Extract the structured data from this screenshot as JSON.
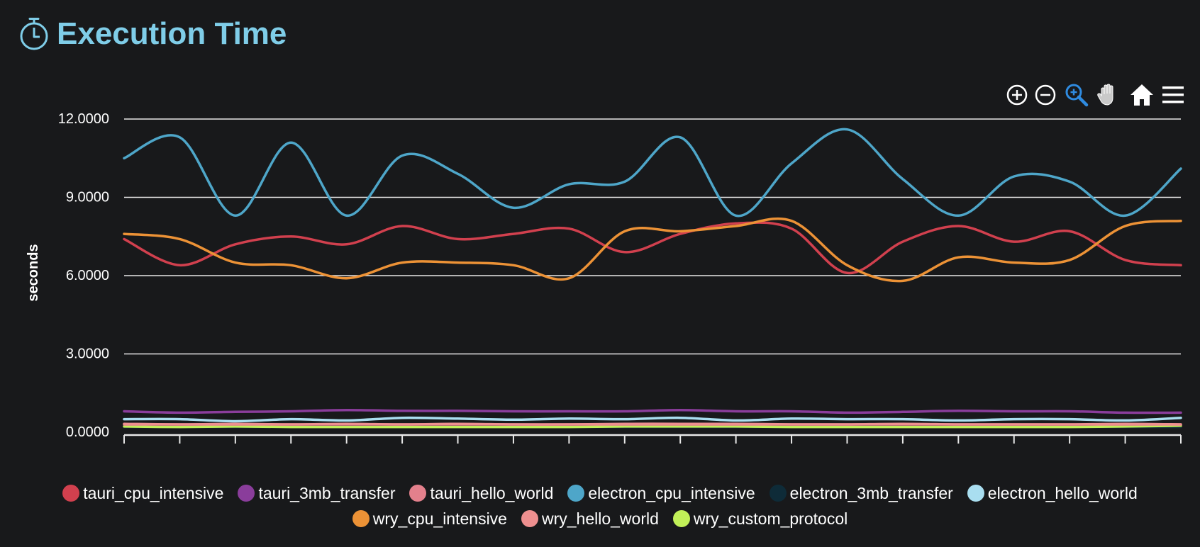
{
  "header": {
    "title": "Execution Time",
    "icon": "stopwatch-icon"
  },
  "toolbar": {
    "buttons": [
      {
        "name": "zoom-in-icon",
        "active": false
      },
      {
        "name": "zoom-out-icon",
        "active": false
      },
      {
        "name": "selection-zoom-icon",
        "active": true
      },
      {
        "name": "pan-hand-icon",
        "active": false
      },
      {
        "name": "reset-home-icon",
        "active": false
      },
      {
        "name": "menu-icon",
        "active": false
      }
    ],
    "active_color": "#2f8be0",
    "icon_color": "#ffffff"
  },
  "chart_data": {
    "type": "line",
    "title": "",
    "xlabel": "",
    "ylabel": "seconds",
    "ylim": [
      0,
      12
    ],
    "yticks": [
      "0.0000",
      "3.0000",
      "6.0000",
      "9.0000",
      "12.0000"
    ],
    "ytick_values": [
      0,
      3,
      6,
      9,
      12
    ],
    "x_count": 20,
    "x_tick_labels_visible": false,
    "grid": true,
    "legend_position": "bottom",
    "legend_rows": [
      [
        "tauri_cpu_intensive",
        "tauri_3mb_transfer",
        "tauri_hello_world",
        "electron_cpu_intensive",
        "electron_3mb_transfer",
        "electron_hello_world"
      ],
      [
        "wry_cpu_intensive",
        "wry_hello_world",
        "wry_custom_protocol"
      ]
    ],
    "series": [
      {
        "name": "tauri_cpu_intensive",
        "color": "#d1404e",
        "values": [
          7.4,
          6.4,
          7.2,
          7.5,
          7.2,
          7.9,
          7.4,
          7.6,
          7.8,
          6.9,
          7.6,
          8.0,
          7.8,
          6.1,
          7.3,
          7.9,
          7.3,
          7.7,
          6.6,
          6.4
        ]
      },
      {
        "name": "tauri_3mb_transfer",
        "color": "#8a3d9b",
        "values": [
          0.8,
          0.75,
          0.78,
          0.8,
          0.85,
          0.82,
          0.82,
          0.8,
          0.8,
          0.8,
          0.85,
          0.8,
          0.8,
          0.75,
          0.78,
          0.82,
          0.8,
          0.8,
          0.75,
          0.75
        ]
      },
      {
        "name": "tauri_hello_world",
        "color": "#e3808c",
        "values": [
          0.3,
          0.3,
          0.3,
          0.3,
          0.3,
          0.3,
          0.3,
          0.3,
          0.3,
          0.3,
          0.3,
          0.3,
          0.3,
          0.3,
          0.3,
          0.3,
          0.3,
          0.3,
          0.3,
          0.3
        ]
      },
      {
        "name": "electron_cpu_intensive",
        "color": "#4ea6c9",
        "values": [
          10.5,
          11.3,
          8.3,
          11.1,
          8.3,
          10.6,
          9.9,
          8.6,
          9.5,
          9.6,
          11.3,
          8.3,
          10.3,
          11.6,
          9.7,
          8.3,
          9.8,
          9.6,
          8.3,
          10.1
        ]
      },
      {
        "name": "electron_3mb_transfer",
        "color": "#0e2b38",
        "values": [
          0.2,
          0.2,
          0.2,
          0.2,
          0.2,
          0.2,
          0.2,
          0.2,
          0.2,
          0.2,
          0.2,
          0.2,
          0.2,
          0.2,
          0.2,
          0.2,
          0.2,
          0.2,
          0.2,
          0.2
        ]
      },
      {
        "name": "electron_hello_world",
        "color": "#a9def0",
        "values": [
          0.5,
          0.5,
          0.42,
          0.5,
          0.45,
          0.55,
          0.52,
          0.48,
          0.52,
          0.5,
          0.55,
          0.45,
          0.52,
          0.5,
          0.5,
          0.45,
          0.5,
          0.5,
          0.45,
          0.55
        ]
      },
      {
        "name": "wry_cpu_intensive",
        "color": "#ec9236",
        "values": [
          7.6,
          7.4,
          6.5,
          6.4,
          5.9,
          6.5,
          6.5,
          6.4,
          5.9,
          7.7,
          7.7,
          7.9,
          8.1,
          6.4,
          5.8,
          6.7,
          6.5,
          6.6,
          7.9,
          8.1
        ]
      },
      {
        "name": "wry_hello_world",
        "color": "#ee8f8f",
        "values": [
          0.32,
          0.3,
          0.32,
          0.3,
          0.32,
          0.3,
          0.32,
          0.3,
          0.3,
          0.32,
          0.32,
          0.32,
          0.3,
          0.3,
          0.32,
          0.3,
          0.3,
          0.3,
          0.32,
          0.3
        ]
      },
      {
        "name": "wry_custom_protocol",
        "color": "#c1f058",
        "values": [
          0.22,
          0.2,
          0.22,
          0.2,
          0.2,
          0.2,
          0.2,
          0.2,
          0.2,
          0.22,
          0.22,
          0.22,
          0.2,
          0.2,
          0.2,
          0.2,
          0.2,
          0.2,
          0.22,
          0.25
        ]
      }
    ]
  }
}
